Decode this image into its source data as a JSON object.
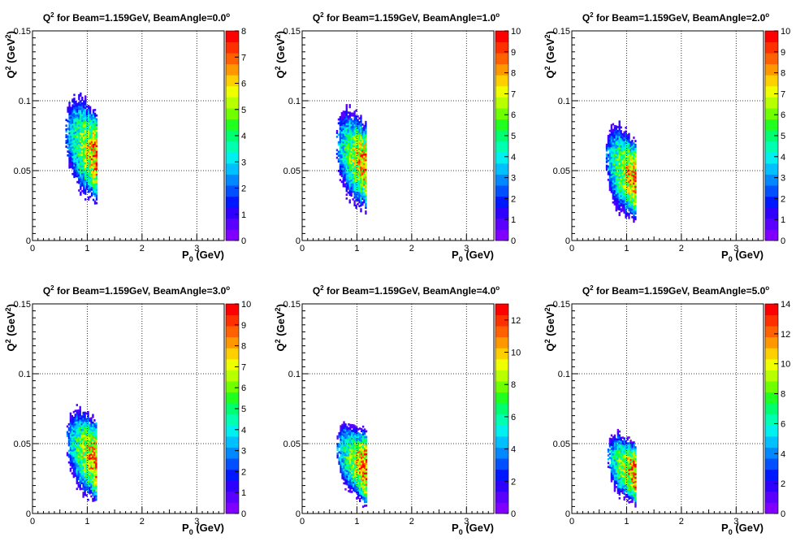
{
  "colors": {
    "palette": [
      "#7f00ff",
      "#5a00ff",
      "#2f00ff",
      "#0018ff",
      "#0050ff",
      "#0088ff",
      "#00c0ff",
      "#00f0f0",
      "#00ffb0",
      "#00ff70",
      "#20ff20",
      "#70ff00",
      "#b8ff00",
      "#f0ff00",
      "#ffd000",
      "#ff9800",
      "#ff6000",
      "#ff3000",
      "#ff0000",
      "#ff0000"
    ],
    "grid": "#000000"
  },
  "chart_data": [
    {
      "type": "heatmap",
      "title": {
        "main": "Q",
        "sup": "2",
        "rest": " for Beam=1.159GeV, BeamAngle=0.0",
        "deg": "o"
      },
      "xlabel": {
        "main": "P",
        "sub": "0",
        "rest": " (GeV)"
      },
      "ylabel": {
        "main": "Q",
        "sup": "2",
        "rest": " (GeV",
        "sup2": "2",
        "end": ")"
      },
      "xlim": [
        0,
        3.5
      ],
      "ylim": [
        0,
        0.15
      ],
      "xticks": [
        "0",
        "1",
        "2",
        "3"
      ],
      "yticks": [
        "0",
        "0.05",
        "0.1",
        "0.15"
      ],
      "zlim": [
        0,
        8
      ],
      "zticks": [
        "0",
        "1",
        "2",
        "3",
        "4",
        "5",
        "6",
        "7",
        "8"
      ],
      "blob": {
        "x_min": 0.6,
        "x_max": 1.17,
        "y_center": 0.07,
        "y_top": 0.103,
        "y_bottom": 0.035,
        "peak": 7
      },
      "grid": true
    },
    {
      "type": "heatmap",
      "title": {
        "main": "Q",
        "sup": "2",
        "rest": " for Beam=1.159GeV, BeamAngle=1.0",
        "deg": "o"
      },
      "xlabel": {
        "main": "P",
        "sub": "0",
        "rest": " (GeV)"
      },
      "ylabel": {
        "main": "Q",
        "sup": "2",
        "rest": " (GeV",
        "sup2": "2",
        "end": ")"
      },
      "xlim": [
        0,
        3.5
      ],
      "ylim": [
        0,
        0.15
      ],
      "xticks": [
        "0",
        "1",
        "2",
        "3"
      ],
      "yticks": [
        "0",
        "0.05",
        "0.1",
        "0.15"
      ],
      "zlim": [
        0,
        10
      ],
      "zticks": [
        "0",
        "1",
        "2",
        "3",
        "4",
        "5",
        "6",
        "7",
        "8",
        "9",
        "10"
      ],
      "blob": {
        "x_min": 0.62,
        "x_max": 1.17,
        "y_center": 0.062,
        "y_top": 0.094,
        "y_bottom": 0.03,
        "peak": 9
      },
      "grid": true
    },
    {
      "type": "heatmap",
      "title": {
        "main": "Q",
        "sup": "2",
        "rest": " for Beam=1.159GeV, BeamAngle=2.0",
        "deg": "o"
      },
      "xlabel": {
        "main": "P",
        "sub": "0",
        "rest": " (GeV)"
      },
      "ylabel": {
        "main": "Q",
        "sup": "2",
        "rest": " (GeV",
        "sup2": "2",
        "end": ")"
      },
      "xlim": [
        0,
        3.5
      ],
      "ylim": [
        0,
        0.15
      ],
      "xticks": [
        "0",
        "1",
        "2",
        "3"
      ],
      "yticks": [
        "0",
        "0.05",
        "0.1",
        "0.15"
      ],
      "zlim": [
        0,
        10
      ],
      "zticks": [
        "0",
        "1",
        "2",
        "3",
        "4",
        "5",
        "6",
        "7",
        "8",
        "9",
        "10"
      ],
      "blob": {
        "x_min": 0.62,
        "x_max": 1.17,
        "y_center": 0.052,
        "y_top": 0.084,
        "y_bottom": 0.022,
        "peak": 9
      },
      "grid": true
    },
    {
      "type": "heatmap",
      "title": {
        "main": "Q",
        "sup": "2",
        "rest": " for Beam=1.159GeV, BeamAngle=3.0",
        "deg": "o"
      },
      "xlabel": {
        "main": "P",
        "sub": "0",
        "rest": " (GeV)"
      },
      "ylabel": {
        "main": "Q",
        "sup": "2",
        "rest": " (GeV",
        "sup2": "2",
        "end": ")"
      },
      "xlim": [
        0,
        3.5
      ],
      "ylim": [
        0,
        0.15
      ],
      "xticks": [
        "0",
        "1",
        "2",
        "3"
      ],
      "yticks": [
        "0",
        "0.05",
        "0.1",
        "0.15"
      ],
      "zlim": [
        0,
        10
      ],
      "zticks": [
        "0",
        "1",
        "2",
        "3",
        "4",
        "5",
        "6",
        "7",
        "8",
        "9",
        "10"
      ],
      "blob": {
        "x_min": 0.62,
        "x_max": 1.17,
        "y_center": 0.046,
        "y_top": 0.074,
        "y_bottom": 0.015,
        "peak": 9
      },
      "grid": true
    },
    {
      "type": "heatmap",
      "title": {
        "main": "Q",
        "sup": "2",
        "rest": " for Beam=1.159GeV, BeamAngle=4.0",
        "deg": "o"
      },
      "xlabel": {
        "main": "P",
        "sub": "0",
        "rest": " (GeV)"
      },
      "ylabel": {
        "main": "Q",
        "sup": "2",
        "rest": " (GeV",
        "sup2": "2",
        "end": ")"
      },
      "xlim": [
        0,
        3.5
      ],
      "ylim": [
        0,
        0.15
      ],
      "xticks": [
        "0",
        "1",
        "2",
        "3"
      ],
      "yticks": [
        "0",
        "0.05",
        "0.1",
        "0.15"
      ],
      "zlim": [
        0,
        13
      ],
      "zticks": [
        "0",
        "2",
        "4",
        "6",
        "8",
        "10",
        "12"
      ],
      "blob": {
        "x_min": 0.63,
        "x_max": 1.17,
        "y_center": 0.04,
        "y_top": 0.064,
        "y_bottom": 0.011,
        "peak": 12
      },
      "grid": true
    },
    {
      "type": "heatmap",
      "title": {
        "main": "Q",
        "sup": "2",
        "rest": " for Beam=1.159GeV, BeamAngle=5.0",
        "deg": "o"
      },
      "xlabel": {
        "main": "P",
        "sub": "0",
        "rest": " (GeV)"
      },
      "ylabel": {
        "main": "Q",
        "sup": "2",
        "rest": " (GeV",
        "sup2": "2",
        "end": ")"
      },
      "xlim": [
        0,
        3.5
      ],
      "ylim": [
        0,
        0.15
      ],
      "xticks": [
        "0",
        "1",
        "2",
        "3"
      ],
      "yticks": [
        "0",
        "0.05",
        "0.1",
        "0.15"
      ],
      "zlim": [
        0,
        14
      ],
      "zticks": [
        "0",
        "2",
        "4",
        "6",
        "8",
        "10",
        "12",
        "14"
      ],
      "blob": {
        "x_min": 0.65,
        "x_max": 1.17,
        "y_center": 0.035,
        "y_top": 0.054,
        "y_bottom": 0.008,
        "peak": 13
      },
      "grid": true
    }
  ]
}
